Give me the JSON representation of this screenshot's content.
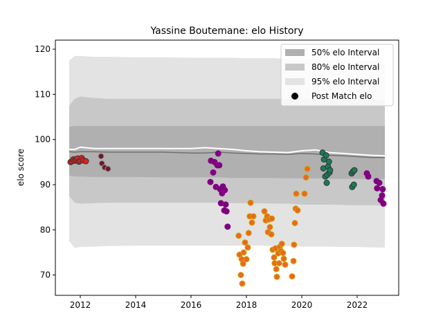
{
  "chart_data": {
    "type": "scatter",
    "title": "Yassine Boutemane: elo History",
    "xlabel": "",
    "ylabel": "elo score",
    "xlim": [
      2011.1,
      2023.5
    ],
    "ylim": [
      65.5,
      122
    ],
    "grid": false,
    "legend_position": "top-right",
    "x_ticks": [
      2012,
      2014,
      2016,
      2018,
      2020,
      2022
    ],
    "x_tick_labels": [
      "2012",
      "2014",
      "2016",
      "2018",
      "2020",
      "2022"
    ],
    "y_ticks": [
      70,
      80,
      90,
      100,
      110,
      120
    ],
    "y_tick_labels": [
      "70",
      "80",
      "90",
      "100",
      "110",
      "120"
    ],
    "legend": {
      "entries": [
        {
          "label": "50% elo Interval",
          "kind": "band",
          "color": "#b0b0b0"
        },
        {
          "label": "80% elo Interval",
          "kind": "band",
          "color": "#c8c8c8"
        },
        {
          "label": "95% elo Interval",
          "kind": "band",
          "color": "#e3e3e3"
        },
        {
          "label": "Post Match elo",
          "kind": "marker",
          "color": "#000000"
        }
      ]
    },
    "bands": {
      "x": [
        2011.6,
        2011.8,
        2012.0,
        2012.5,
        2013.0,
        2014.0,
        2015.0,
        2016.0,
        2016.5,
        2017.0,
        2017.5,
        2018.0,
        2018.5,
        2019.0,
        2019.5,
        2020.0,
        2020.5,
        2021.0,
        2021.5,
        2022.0,
        2022.5,
        2023.0
      ],
      "ci95_upper": [
        117.5,
        118.5,
        118.5,
        118.3,
        118.3,
        118.2,
        118.2,
        118.1,
        118.1,
        118.1,
        118.1,
        118.0,
        118.0,
        118.0,
        117.8,
        117.8,
        117.7,
        117.6,
        117.5,
        117.4,
        117.4,
        117.5
      ],
      "ci80_upper": [
        107.5,
        109.0,
        109.5,
        109.2,
        109.0,
        109.0,
        109.0,
        109.0,
        109.0,
        109.0,
        109.0,
        109.0,
        109.0,
        109.0,
        109.0,
        109.2,
        109.0,
        109.0,
        109.0,
        109.0,
        108.8,
        108.8
      ],
      "ci50_upper": [
        102.8,
        103.0,
        103.0,
        103.0,
        103.0,
        103.0,
        103.0,
        103.0,
        103.0,
        103.0,
        103.0,
        103.0,
        103.0,
        103.0,
        103.0,
        103.0,
        103.0,
        103.0,
        103.0,
        103.0,
        103.0,
        103.0
      ],
      "ci50_lower": [
        92.0,
        91.8,
        91.8,
        91.7,
        91.7,
        91.7,
        91.6,
        91.6,
        91.6,
        91.6,
        91.5,
        91.5,
        91.5,
        91.5,
        91.4,
        91.4,
        91.4,
        91.3,
        91.3,
        91.3,
        91.2,
        91.2
      ],
      "ci80_lower": [
        87.5,
        86.0,
        85.8,
        85.9,
        86.0,
        86.0,
        86.0,
        86.0,
        86.0,
        86.0,
        85.9,
        85.9,
        85.9,
        85.8,
        85.8,
        85.6,
        85.6,
        85.6,
        85.5,
        85.4,
        85.4,
        85.4
      ],
      "ci95_lower": [
        77.5,
        76.0,
        76.2,
        76.3,
        76.4,
        76.5,
        76.5,
        76.5,
        76.5,
        76.5,
        76.5,
        76.5,
        76.5,
        76.4,
        76.4,
        76.3,
        76.3,
        76.3,
        76.2,
        76.2,
        76.1,
        76.1
      ],
      "median": [
        97.3,
        97.2,
        97.3,
        97.3,
        97.2,
        97.2,
        97.2,
        97.0,
        97.0,
        97.2,
        97.0,
        96.9,
        96.8,
        96.8,
        96.7,
        96.9,
        96.8,
        96.5,
        96.4,
        96.2,
        96.0,
        96.0
      ],
      "mean": [
        97.8,
        97.8,
        98.3,
        98.0,
        98.0,
        98.0,
        98.0,
        98.0,
        98.2,
        98.0,
        97.8,
        97.5,
        97.3,
        97.2,
        97.1,
        97.5,
        97.7,
        97.1,
        96.9,
        96.7,
        96.5,
        96.4
      ]
    },
    "series": [
      {
        "color": "#dd2222",
        "edge": "#333333",
        "points": [
          [
            2011.65,
            95.0
          ],
          [
            2011.7,
            95.2
          ],
          [
            2011.75,
            95.6
          ],
          [
            2011.8,
            95.3
          ],
          [
            2011.85,
            95.5
          ],
          [
            2011.9,
            95.8
          ],
          [
            2011.95,
            95.1
          ],
          [
            2012.0,
            95.3
          ],
          [
            2012.05,
            95.9
          ],
          [
            2012.1,
            95.4
          ],
          [
            2012.2,
            95.2
          ]
        ]
      },
      {
        "color": "#6b1a2a",
        "edge": "#999999",
        "points": [
          [
            2012.75,
            96.3
          ],
          [
            2012.78,
            94.7
          ],
          [
            2012.88,
            93.8
          ],
          [
            2013.0,
            93.5
          ]
        ]
      },
      {
        "color": "#800080",
        "edge": "#800080",
        "points": [
          [
            2016.7,
            90.6
          ],
          [
            2016.72,
            95.3
          ],
          [
            2016.8,
            92.7
          ],
          [
            2016.85,
            95.0
          ],
          [
            2016.9,
            89.5
          ],
          [
            2016.95,
            94.3
          ],
          [
            2016.98,
            96.9
          ],
          [
            2017.02,
            94.3
          ],
          [
            2017.05,
            89.0
          ],
          [
            2017.08,
            85.9
          ],
          [
            2017.12,
            88.1
          ],
          [
            2017.15,
            89.6
          ],
          [
            2017.2,
            84.3
          ],
          [
            2017.22,
            88.8
          ],
          [
            2017.25,
            85.6
          ],
          [
            2017.28,
            84.1
          ],
          [
            2017.32,
            80.7
          ]
        ]
      },
      {
        "color": "#ee6622",
        "edge": "#ccaa00",
        "points": [
          [
            2017.72,
            78.7
          ],
          [
            2017.75,
            74.5
          ],
          [
            2017.8,
            70.0
          ],
          [
            2017.83,
            73.5
          ],
          [
            2017.85,
            68.1
          ],
          [
            2017.88,
            72.5
          ],
          [
            2017.9,
            75.0
          ],
          [
            2017.95,
            77.2
          ],
          [
            2018.0,
            73.5
          ],
          [
            2018.05,
            76.1
          ],
          [
            2018.08,
            79.3
          ],
          [
            2018.12,
            83.0
          ],
          [
            2018.15,
            86.0
          ],
          [
            2018.2,
            81.6
          ],
          [
            2018.25,
            83.0
          ],
          [
            2018.65,
            84.1
          ],
          [
            2018.7,
            82.1
          ],
          [
            2018.75,
            83.0
          ],
          [
            2018.78,
            79.5
          ],
          [
            2018.82,
            82.3
          ],
          [
            2018.85,
            80.6
          ],
          [
            2018.9,
            79.0
          ],
          [
            2018.92,
            82.5
          ],
          [
            2018.95,
            75.6
          ],
          [
            2019.0,
            73.9
          ],
          [
            2019.02,
            72.6
          ],
          [
            2019.05,
            75.9
          ],
          [
            2019.08,
            71.3
          ],
          [
            2019.1,
            69.6
          ],
          [
            2019.15,
            74.8
          ],
          [
            2019.18,
            72.6
          ],
          [
            2019.2,
            76.2
          ],
          [
            2019.25,
            75.3
          ],
          [
            2019.28,
            76.9
          ],
          [
            2019.32,
            74.9
          ],
          [
            2019.35,
            73.6
          ],
          [
            2019.4,
            72.3
          ],
          [
            2019.65,
            69.7
          ],
          [
            2019.7,
            73.1
          ],
          [
            2019.72,
            76.7
          ],
          [
            2019.75,
            81.5
          ],
          [
            2019.78,
            84.7
          ],
          [
            2019.8,
            88.0
          ],
          [
            2019.85,
            84.3
          ],
          [
            2020.1,
            88.0
          ],
          [
            2020.15,
            91.6
          ],
          [
            2020.2,
            93.5
          ]
        ]
      },
      {
        "color": "#1a7a5a",
        "edge": "#333333",
        "points": [
          [
            2020.75,
            97.1
          ],
          [
            2020.78,
            93.6
          ],
          [
            2020.8,
            95.6
          ],
          [
            2020.85,
            91.8
          ],
          [
            2020.88,
            96.5
          ],
          [
            2020.9,
            90.4
          ],
          [
            2020.92,
            92.2
          ],
          [
            2020.95,
            94.0
          ],
          [
            2020.98,
            95.1
          ],
          [
            2021.0,
            92.7
          ],
          [
            2021.02,
            93.2
          ]
        ]
      },
      {
        "color": "#1a7a5a",
        "edge": "#333333",
        "points": [
          [
            2021.8,
            92.5
          ],
          [
            2021.82,
            89.5
          ],
          [
            2021.85,
            92.9
          ],
          [
            2021.88,
            90.0
          ],
          [
            2021.9,
            93.2
          ]
        ]
      },
      {
        "color": "#800080",
        "edge": "#800080",
        "points": [
          [
            2022.35,
            92.5
          ],
          [
            2022.4,
            91.8
          ],
          [
            2022.7,
            90.8
          ],
          [
            2022.72,
            89.2
          ],
          [
            2022.8,
            90.4
          ],
          [
            2022.85,
            86.6
          ],
          [
            2022.9,
            87.6
          ],
          [
            2022.92,
            89.0
          ],
          [
            2022.95,
            85.8
          ]
        ]
      }
    ]
  }
}
